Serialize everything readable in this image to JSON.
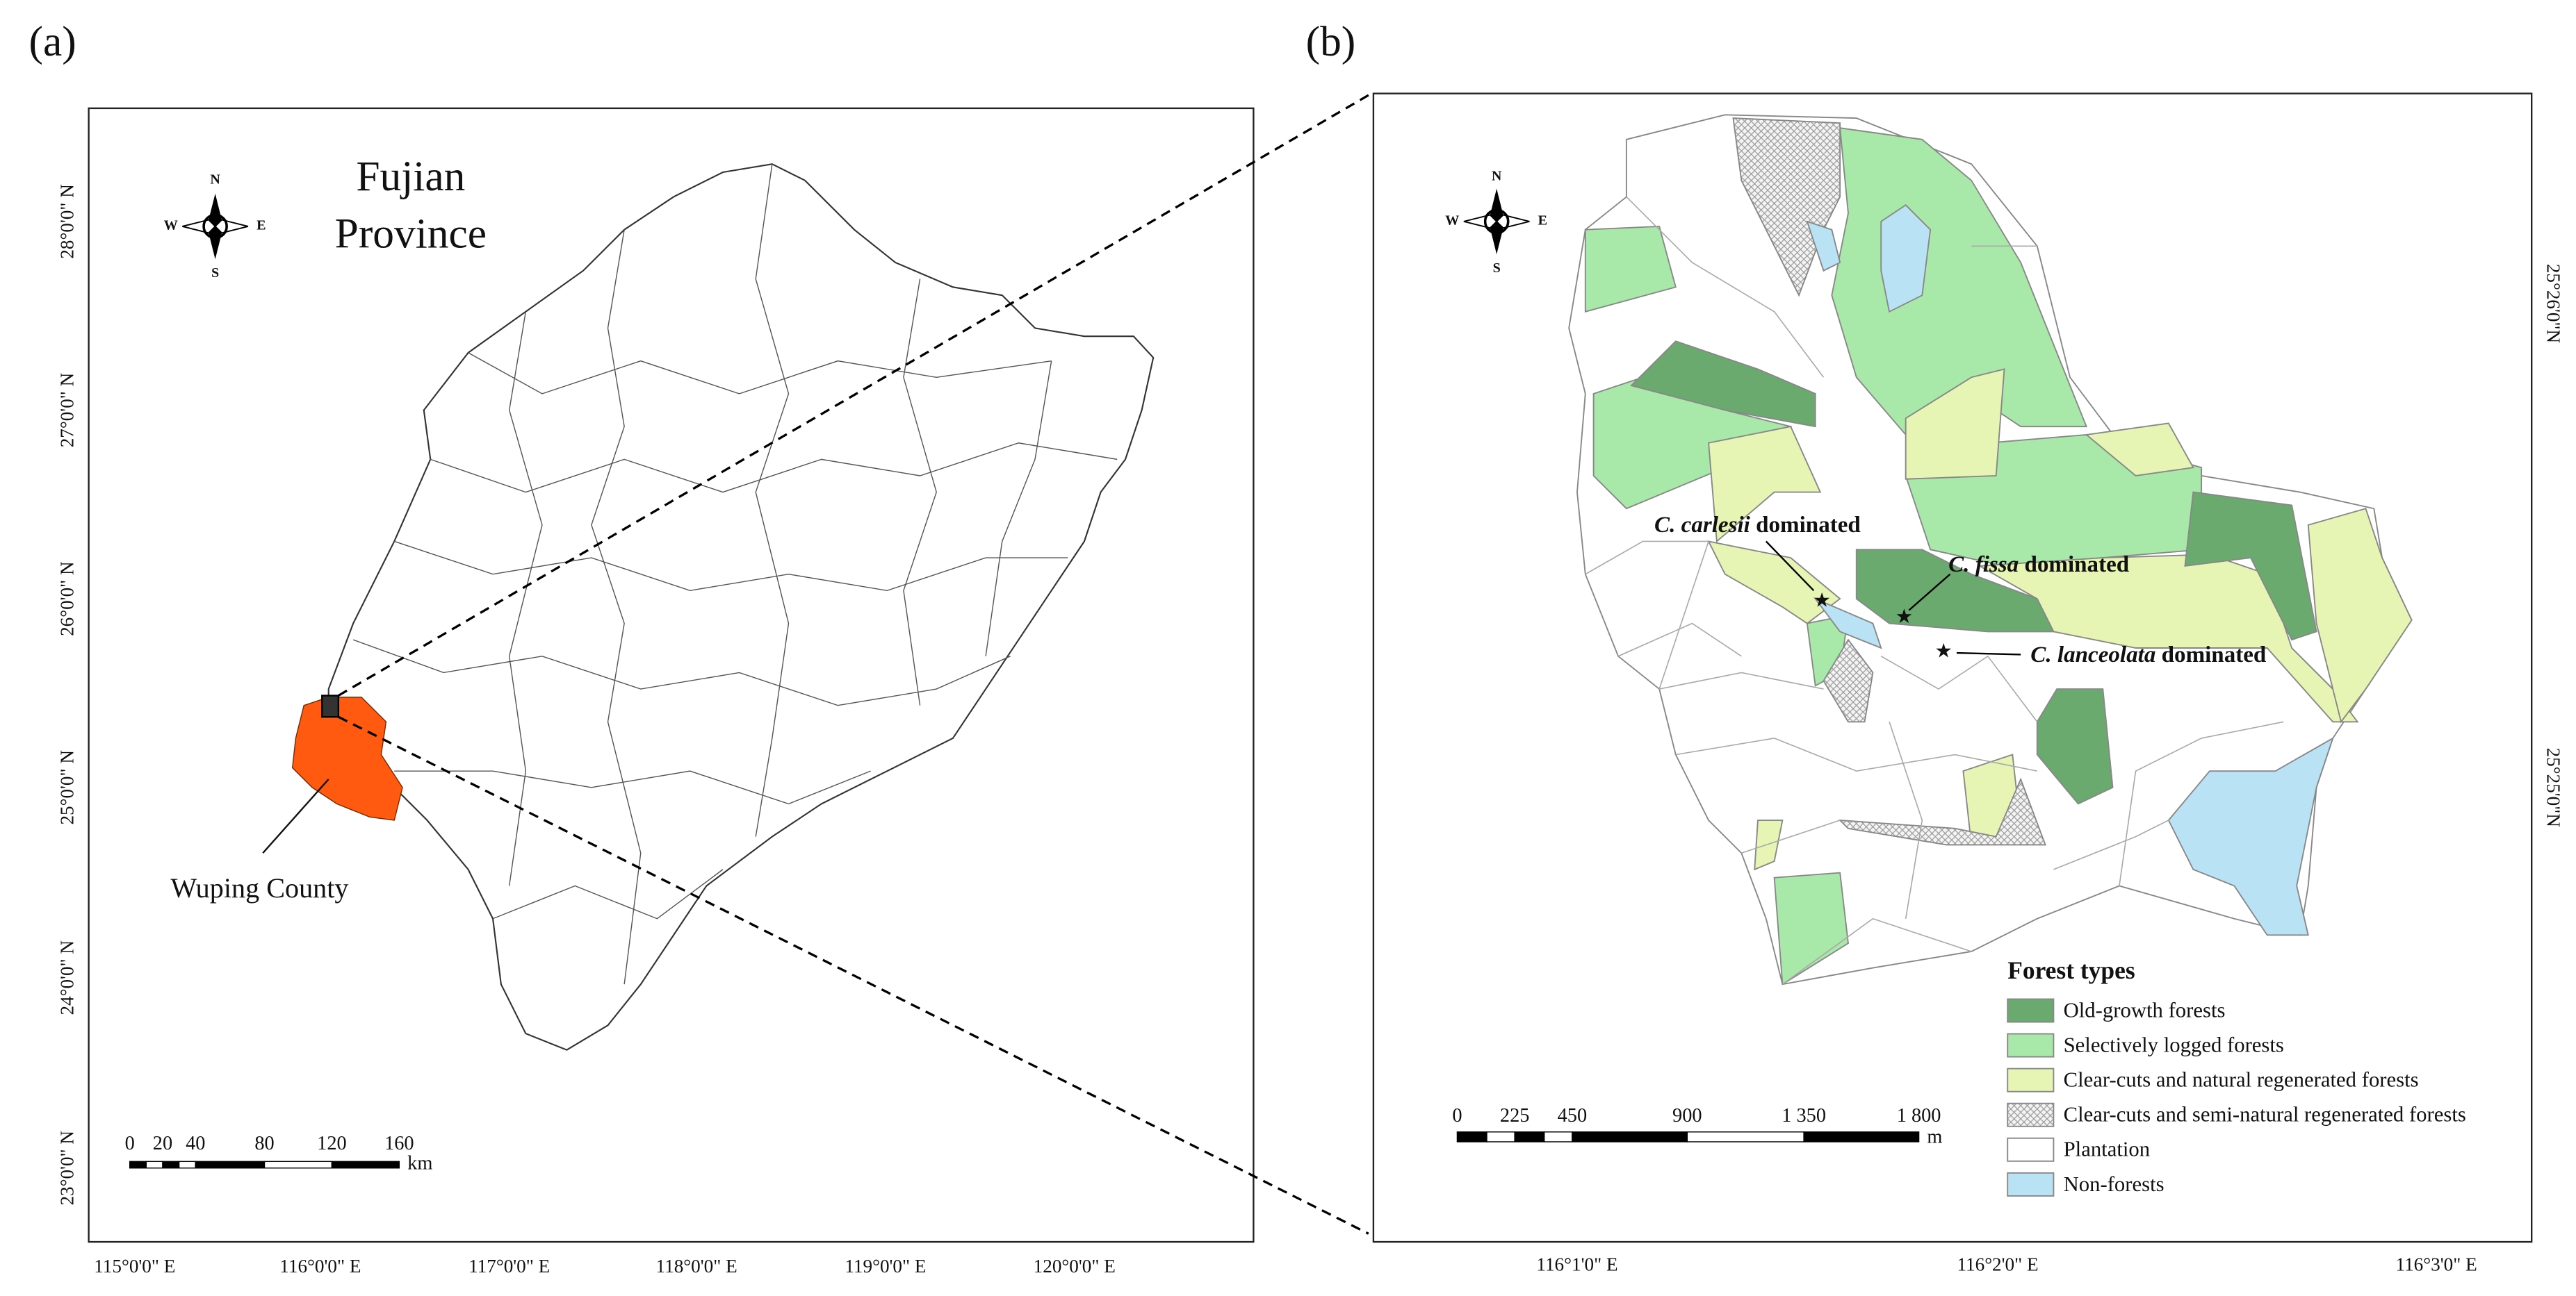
{
  "panels": [
    {
      "label": "(a)",
      "title": [
        "Fujian",
        "Province"
      ],
      "compass": {
        "n": "N",
        "s": "S",
        "w": "W",
        "e": "E"
      },
      "county_label": "Wuping County",
      "x_labels": [
        "115°0'0\" E",
        "116°0'0\" E",
        "117°0'0\" E",
        "118°0'0\" E",
        "119°0'0\" E",
        "120°0'0\" E"
      ],
      "y_labels": [
        "28°0'0\" N",
        "27°0'0\" N",
        "26°0'0\" N",
        "25°0'0\" N",
        "24°0'0\" N",
        "23°0'0\" N"
      ],
      "scale_labels": [
        "0",
        "20",
        "40",
        "80",
        "120",
        "160"
      ],
      "scale_unit": "km"
    },
    {
      "label": "(b)",
      "compass": {
        "n": "N",
        "s": "S",
        "w": "W",
        "e": "E"
      },
      "annotations": [
        {
          "species": "C. carlesii",
          "text": "dominated"
        },
        {
          "species": "C. fissa",
          "text": "dominated"
        },
        {
          "species": "C. lanceolata",
          "text": "dominated"
        }
      ],
      "x_labels": [
        "116°1'0\" E",
        "116°2'0\" E",
        "116°3'0\" E"
      ],
      "y_labels": [
        "25°26'0\"N",
        "25°25'0\"N"
      ],
      "scale_labels": [
        "0",
        "225",
        "450",
        "900",
        "1 350",
        "1 800"
      ],
      "scale_unit": "m",
      "legend": {
        "title": "Forest types",
        "items": [
          {
            "label": "Old-growth forests",
            "color": "#6aaa6e"
          },
          {
            "label": "Selectively logged forests",
            "color": "#a8e8a8"
          },
          {
            "label": "Clear-cuts and natural regenerated forests",
            "color": "#e6f5b3"
          },
          {
            "label": "Clear-cuts and semi-natural regenerated forests",
            "color": "#e0e0e0"
          },
          {
            "label": "Plantation",
            "color": "#ffffff"
          },
          {
            "label": "Non-forests",
            "color": "#b9e3f5"
          }
        ]
      }
    }
  ]
}
